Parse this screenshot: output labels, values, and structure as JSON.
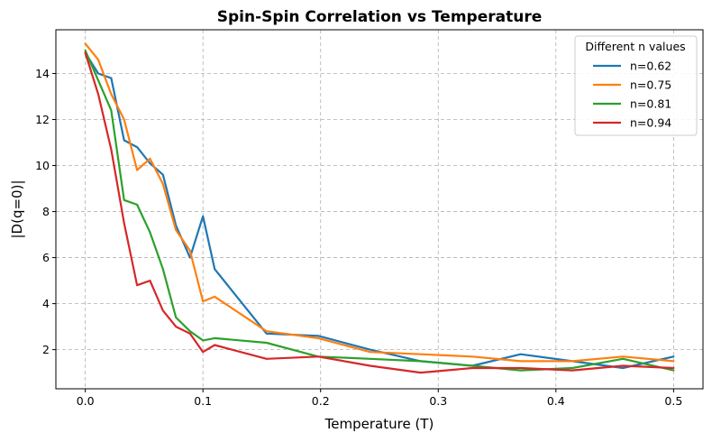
{
  "chart_data": {
    "type": "line",
    "title": "Spin-Spin Correlation vs Temperature",
    "xlabel": "Temperature (T)",
    "ylabel": "|D(q=0)|",
    "xlim": [
      -0.025,
      0.525
    ],
    "ylim": [
      0.3,
      15.9
    ],
    "xticks": [
      0.0,
      0.1,
      0.2,
      0.3,
      0.4,
      0.5
    ],
    "xtick_labels": [
      "0.0",
      "0.1",
      "0.2",
      "0.3",
      "0.4",
      "0.5"
    ],
    "yticks": [
      2,
      4,
      6,
      8,
      10,
      12,
      14
    ],
    "ytick_labels": [
      "2",
      "4",
      "6",
      "8",
      "10",
      "12",
      "14"
    ],
    "grid": true,
    "grid_style": "dashed",
    "legend": {
      "title": "Different n values",
      "placement": "top-right"
    },
    "series": [
      {
        "name": "n=0.62",
        "color": "#1f77b4",
        "x": [
          0.0,
          0.011,
          0.022,
          0.033,
          0.044,
          0.055,
          0.066,
          0.077,
          0.089,
          0.1,
          0.11,
          0.154,
          0.198,
          0.242,
          0.285,
          0.329,
          0.37,
          0.414,
          0.457,
          0.5
        ],
        "y": [
          14.9,
          14.0,
          13.8,
          11.1,
          10.8,
          10.1,
          9.6,
          7.4,
          6.0,
          7.8,
          5.5,
          2.7,
          2.6,
          2.0,
          1.5,
          1.3,
          1.8,
          1.5,
          1.2,
          1.7
        ]
      },
      {
        "name": "n=0.75",
        "color": "#ff7f0e",
        "x": [
          0.0,
          0.011,
          0.022,
          0.033,
          0.044,
          0.055,
          0.066,
          0.077,
          0.089,
          0.1,
          0.11,
          0.154,
          0.198,
          0.242,
          0.285,
          0.329,
          0.37,
          0.414,
          0.457,
          0.5
        ],
        "y": [
          15.3,
          14.6,
          13.1,
          12.0,
          9.8,
          10.3,
          9.2,
          7.2,
          6.3,
          4.1,
          4.3,
          2.8,
          2.5,
          1.9,
          1.8,
          1.7,
          1.5,
          1.5,
          1.7,
          1.5
        ]
      },
      {
        "name": "n=0.81",
        "color": "#2ca02c",
        "x": [
          0.0,
          0.011,
          0.022,
          0.033,
          0.044,
          0.055,
          0.066,
          0.077,
          0.089,
          0.1,
          0.11,
          0.154,
          0.198,
          0.242,
          0.285,
          0.329,
          0.37,
          0.414,
          0.457,
          0.5
        ],
        "y": [
          15.0,
          13.7,
          12.4,
          8.5,
          8.3,
          7.1,
          5.5,
          3.4,
          2.8,
          2.4,
          2.5,
          2.3,
          1.7,
          1.6,
          1.5,
          1.3,
          1.1,
          1.2,
          1.6,
          1.1
        ]
      },
      {
        "name": "n=0.94",
        "color": "#d62728",
        "x": [
          0.0,
          0.011,
          0.022,
          0.033,
          0.044,
          0.055,
          0.066,
          0.077,
          0.089,
          0.1,
          0.11,
          0.154,
          0.198,
          0.242,
          0.285,
          0.329,
          0.37,
          0.414,
          0.457,
          0.5
        ],
        "y": [
          14.9,
          13.1,
          10.7,
          7.5,
          4.8,
          5.0,
          3.7,
          3.0,
          2.7,
          1.9,
          2.2,
          1.6,
          1.7,
          1.3,
          1.0,
          1.2,
          1.2,
          1.1,
          1.3,
          1.2
        ]
      }
    ]
  }
}
